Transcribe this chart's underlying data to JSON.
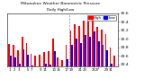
{
  "title": "Milwaukee Weather Barometric Pressure",
  "subtitle": "Daily High/Low",
  "background_color": "#ffffff",
  "plot_bg": "#ffffff",
  "high_color": "#ff0000",
  "low_color": "#0000ff",
  "ylim": [
    29.35,
    30.6
  ],
  "yticks": [
    29.4,
    29.6,
    29.8,
    30.0,
    30.2,
    30.4,
    30.6
  ],
  "xlabels": [
    "1",
    "2",
    "3",
    "5",
    "7",
    "9",
    "11",
    "13",
    "15",
    "17",
    "19",
    "21",
    "23",
    "25",
    "27",
    "29",
    "31"
  ],
  "high_values": [
    29.88,
    29.85,
    29.72,
    30.05,
    29.9,
    29.65,
    29.6,
    29.62,
    29.68,
    29.7,
    30.0,
    29.55,
    29.5,
    29.85,
    30.2,
    30.35,
    30.3,
    30.42,
    30.4,
    30.5,
    30.28,
    30.22,
    30.1,
    29.8,
    29.6
  ],
  "low_values": [
    29.6,
    29.55,
    29.42,
    29.75,
    29.62,
    29.38,
    29.3,
    29.35,
    29.42,
    29.4,
    29.7,
    29.2,
    29.1,
    29.52,
    29.85,
    30.0,
    29.9,
    30.08,
    30.05,
    30.18,
    29.95,
    29.85,
    29.72,
    29.42,
    29.22
  ],
  "vline_x": 13.5,
  "bar_width": 0.38,
  "legend_high": "High",
  "legend_low": "Low"
}
